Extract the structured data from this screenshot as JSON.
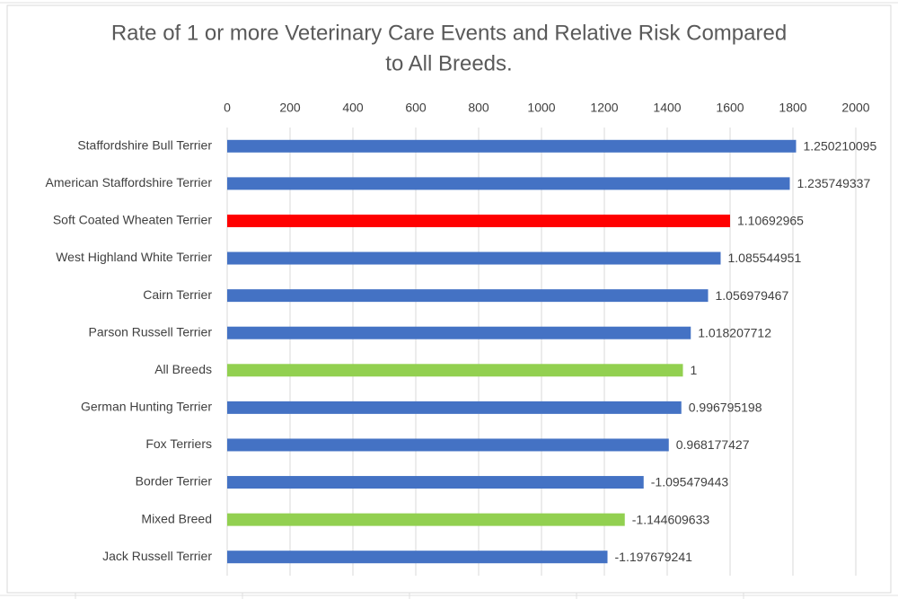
{
  "chart_data": {
    "type": "bar",
    "orientation": "horizontal",
    "title": [
      "Rate of 1 or more Veterinary Care Events and Relative Risk Compared",
      "to All Breeds."
    ],
    "categories": [
      "Staffordshire Bull Terrier",
      "American Staffordshire Terrier",
      "Soft Coated Wheaten Terrier",
      "West Highland White Terrier",
      "Cairn Terrier",
      "Parson Russell Terrier",
      "All Breeds",
      "German Hunting Terrier",
      "Fox Terriers",
      "Border Terrier",
      "Mixed Breed",
      "Jack Russell Terrier"
    ],
    "values": [
      1810,
      1790,
      1600,
      1570,
      1530,
      1475,
      1450,
      1445,
      1405,
      1325,
      1265,
      1210
    ],
    "relative_risk": [
      1.250210095,
      1.235749337,
      1.10692965,
      1.085544951,
      1.056979467,
      1.018207712,
      1,
      0.996795198,
      0.968177427,
      -1.095479443,
      -1.144609633,
      -1.197679241
    ],
    "colors": [
      "#4472c4",
      "#4472c4",
      "#ff0000",
      "#4472c4",
      "#4472c4",
      "#4472c4",
      "#92d050",
      "#4472c4",
      "#4472c4",
      "#4472c4",
      "#92d050",
      "#4472c4"
    ],
    "xlim": [
      0,
      2000
    ],
    "xticks": [
      0,
      200,
      400,
      600,
      800,
      1000,
      1200,
      1400,
      1600,
      1800,
      2000
    ],
    "grid": true
  }
}
